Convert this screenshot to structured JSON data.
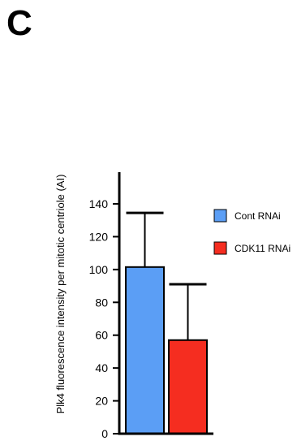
{
  "panel": {
    "letter": "C"
  },
  "chart_data": {
    "type": "bar",
    "categories": [
      "Cont RNAi",
      "CDK11 RNAi"
    ],
    "values": [
      101.5,
      57
    ],
    "error_upper": [
      134.5,
      91
    ],
    "series": [
      {
        "name": "Cont RNAi",
        "values": [
          101.5,
          null
        ],
        "color": "#5b9ef5"
      },
      {
        "name": "CDK11 RNAi",
        "values": [
          null,
          57
        ],
        "color": "#f52d20"
      }
    ],
    "legend": [
      {
        "label": "Cont RNAi",
        "color": "#5b9ef5"
      },
      {
        "label": "CDK11 RNAi",
        "color": "#f52d20"
      }
    ],
    "title": "",
    "xlabel": "",
    "ylabel": "Plk4 fluorescence intensity per mitotic centriole (AI)",
    "ylim": [
      0,
      140
    ],
    "yticks": [
      0,
      20,
      40,
      60,
      80,
      100,
      120,
      140
    ],
    "grid": false,
    "legend_position": "right"
  }
}
